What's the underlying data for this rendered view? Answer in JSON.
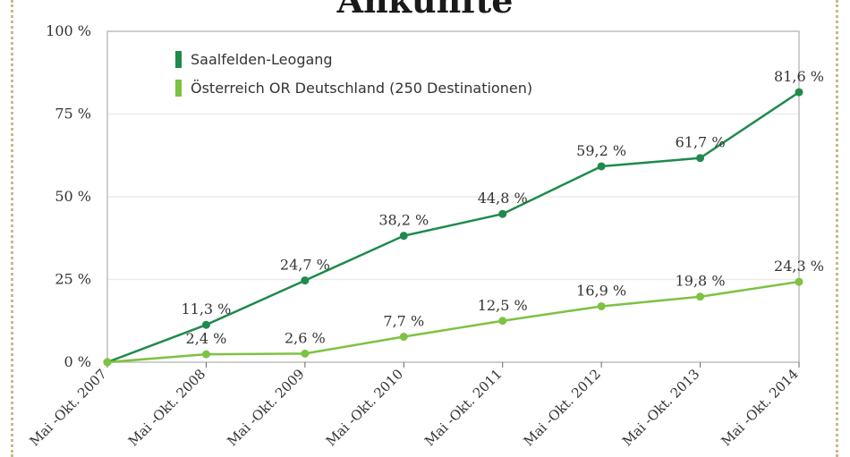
{
  "title": "Ankünfte",
  "colors": {
    "series1": "#1f8a4c",
    "series2": "#7dc242",
    "frame": "#bdbdbd",
    "grid": "#ececec"
  },
  "chart_data": {
    "type": "line",
    "title": "Ankünfte",
    "xlabel": "",
    "ylabel": "",
    "ylim": [
      0,
      100
    ],
    "yticks": [
      0,
      25,
      50,
      75,
      100
    ],
    "ytick_labels": [
      "0 %",
      "25 %",
      "50 %",
      "75 %",
      "100 %"
    ],
    "categories": [
      "Mai -Okt. 2007",
      "Mai -Okt. 2008",
      "Mai -Okt. 2009",
      "Mai -Okt. 2010",
      "Mai -Okt. 2011",
      "Mai -Okt. 2012",
      "Mai -Okt. 2013",
      "Mai -Okt. 2014"
    ],
    "legend_position": "top-left",
    "grid": true,
    "series": [
      {
        "name": "Saalfelden-Leogang",
        "color": "#1f8a4c",
        "values": [
          0,
          11.3,
          24.7,
          38.2,
          44.8,
          59.2,
          61.7,
          81.6
        ],
        "labels": [
          "",
          "11,3 %",
          "24,7 %",
          "38,2 %",
          "44,8 %",
          "59,2 %",
          "61,7 %",
          "81,6 %"
        ]
      },
      {
        "name": "Österreich OR Deutschland (250 Destinationen)",
        "color": "#7dc242",
        "values": [
          0,
          2.4,
          2.6,
          7.7,
          12.5,
          16.9,
          19.8,
          24.3
        ],
        "labels": [
          "",
          "2,4 %",
          "2,6 %",
          "7,7 %",
          "12,5 %",
          "16,9 %",
          "19,8 %",
          "24,3 %"
        ]
      }
    ]
  }
}
